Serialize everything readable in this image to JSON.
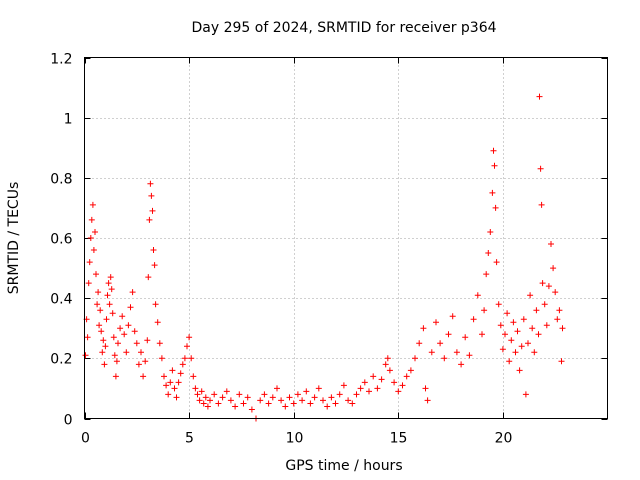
{
  "chart_data": {
    "type": "scatter",
    "title": "Day 295 of 2024, SRMTID for receiver p364",
    "xlabel": "GPS time / hours",
    "ylabel": "SRMTID / TECUs",
    "xlim": [
      0,
      25
    ],
    "ylim": [
      0,
      1.2
    ],
    "x_ticks": [
      0,
      5,
      10,
      15,
      20
    ],
    "x_tick_labels": [
      "0",
      "5",
      "10",
      "15",
      "20"
    ],
    "y_ticks": [
      0,
      0.2,
      0.4,
      0.6,
      0.8,
      1.0,
      1.2
    ],
    "y_tick_labels": [
      "0",
      "0.2",
      "0.4",
      "0.6",
      "0.8",
      "1",
      "1.2"
    ],
    "grid": true,
    "marker": "plus",
    "color": "#ff0000",
    "series": [
      {
        "name": "SRMTID",
        "points": [
          [
            0.05,
            0.21
          ],
          [
            0.1,
            0.33
          ],
          [
            0.15,
            0.27
          ],
          [
            0.2,
            0.45
          ],
          [
            0.25,
            0.52
          ],
          [
            0.3,
            0.6
          ],
          [
            0.35,
            0.66
          ],
          [
            0.4,
            0.71
          ],
          [
            0.45,
            0.56
          ],
          [
            0.5,
            0.62
          ],
          [
            0.55,
            0.48
          ],
          [
            0.6,
            0.38
          ],
          [
            0.65,
            0.42
          ],
          [
            0.7,
            0.31
          ],
          [
            0.75,
            0.36
          ],
          [
            0.8,
            0.29
          ],
          [
            0.85,
            0.22
          ],
          [
            0.9,
            0.26
          ],
          [
            0.95,
            0.18
          ],
          [
            1.0,
            0.24
          ],
          [
            1.05,
            0.33
          ],
          [
            1.1,
            0.41
          ],
          [
            1.15,
            0.45
          ],
          [
            1.2,
            0.38
          ],
          [
            1.25,
            0.47
          ],
          [
            1.3,
            0.43
          ],
          [
            1.35,
            0.35
          ],
          [
            1.4,
            0.27
          ],
          [
            1.45,
            0.21
          ],
          [
            1.5,
            0.14
          ],
          [
            1.55,
            0.19
          ],
          [
            1.6,
            0.25
          ],
          [
            1.7,
            0.3
          ],
          [
            1.8,
            0.34
          ],
          [
            1.9,
            0.28
          ],
          [
            2.0,
            0.22
          ],
          [
            2.1,
            0.31
          ],
          [
            2.2,
            0.37
          ],
          [
            2.3,
            0.42
          ],
          [
            2.4,
            0.29
          ],
          [
            2.5,
            0.25
          ],
          [
            2.6,
            0.18
          ],
          [
            2.7,
            0.22
          ],
          [
            2.8,
            0.14
          ],
          [
            2.9,
            0.19
          ],
          [
            3.0,
            0.26
          ],
          [
            3.05,
            0.47
          ],
          [
            3.1,
            0.66
          ],
          [
            3.15,
            0.78
          ],
          [
            3.2,
            0.74
          ],
          [
            3.25,
            0.69
          ],
          [
            3.3,
            0.56
          ],
          [
            3.35,
            0.51
          ],
          [
            3.4,
            0.38
          ],
          [
            3.5,
            0.32
          ],
          [
            3.6,
            0.25
          ],
          [
            3.7,
            0.2
          ],
          [
            3.8,
            0.14
          ],
          [
            3.9,
            0.11
          ],
          [
            4.0,
            0.08
          ],
          [
            4.1,
            0.12
          ],
          [
            4.2,
            0.16
          ],
          [
            4.3,
            0.1
          ],
          [
            4.4,
            0.07
          ],
          [
            4.5,
            0.12
          ],
          [
            4.6,
            0.15
          ],
          [
            4.7,
            0.18
          ],
          [
            4.8,
            0.2
          ],
          [
            4.9,
            0.24
          ],
          [
            5.0,
            0.27
          ],
          [
            5.1,
            0.2
          ],
          [
            5.2,
            0.14
          ],
          [
            5.3,
            0.1
          ],
          [
            5.4,
            0.08
          ],
          [
            5.5,
            0.06
          ],
          [
            5.6,
            0.09
          ],
          [
            5.7,
            0.05
          ],
          [
            5.8,
            0.07
          ],
          [
            5.9,
            0.04
          ],
          [
            6.0,
            0.06
          ],
          [
            6.2,
            0.08
          ],
          [
            6.4,
            0.05
          ],
          [
            6.6,
            0.07
          ],
          [
            6.8,
            0.09
          ],
          [
            7.0,
            0.06
          ],
          [
            7.2,
            0.04
          ],
          [
            7.4,
            0.08
          ],
          [
            7.6,
            0.05
          ],
          [
            7.8,
            0.07
          ],
          [
            8.0,
            0.03
          ],
          [
            8.2,
            0.0
          ],
          [
            8.4,
            0.06
          ],
          [
            8.6,
            0.08
          ],
          [
            8.8,
            0.05
          ],
          [
            9.0,
            0.07
          ],
          [
            9.2,
            0.1
          ],
          [
            9.4,
            0.06
          ],
          [
            9.6,
            0.04
          ],
          [
            9.8,
            0.07
          ],
          [
            10.0,
            0.05
          ],
          [
            10.2,
            0.08
          ],
          [
            10.4,
            0.06
          ],
          [
            10.6,
            0.09
          ],
          [
            10.8,
            0.05
          ],
          [
            11.0,
            0.07
          ],
          [
            11.2,
            0.1
          ],
          [
            11.4,
            0.06
          ],
          [
            11.6,
            0.04
          ],
          [
            11.8,
            0.07
          ],
          [
            12.0,
            0.05
          ],
          [
            12.2,
            0.08
          ],
          [
            12.4,
            0.11
          ],
          [
            12.6,
            0.06
          ],
          [
            12.8,
            0.05
          ],
          [
            13.0,
            0.08
          ],
          [
            13.2,
            0.1
          ],
          [
            13.4,
            0.12
          ],
          [
            13.6,
            0.09
          ],
          [
            13.8,
            0.14
          ],
          [
            14.0,
            0.1
          ],
          [
            14.2,
            0.13
          ],
          [
            14.4,
            0.18
          ],
          [
            14.5,
            0.2
          ],
          [
            14.6,
            0.16
          ],
          [
            14.8,
            0.12
          ],
          [
            15.0,
            0.09
          ],
          [
            15.2,
            0.11
          ],
          [
            15.4,
            0.14
          ],
          [
            15.6,
            0.16
          ],
          [
            15.8,
            0.2
          ],
          [
            16.0,
            0.25
          ],
          [
            16.2,
            0.3
          ],
          [
            16.3,
            0.1
          ],
          [
            16.4,
            0.06
          ],
          [
            16.6,
            0.22
          ],
          [
            16.8,
            0.32
          ],
          [
            17.0,
            0.25
          ],
          [
            17.2,
            0.2
          ],
          [
            17.4,
            0.28
          ],
          [
            17.6,
            0.34
          ],
          [
            17.8,
            0.22
          ],
          [
            18.0,
            0.18
          ],
          [
            18.2,
            0.27
          ],
          [
            18.4,
            0.21
          ],
          [
            18.6,
            0.33
          ],
          [
            18.8,
            0.41
          ],
          [
            19.0,
            0.28
          ],
          [
            19.1,
            0.36
          ],
          [
            19.2,
            0.48
          ],
          [
            19.3,
            0.55
          ],
          [
            19.4,
            0.62
          ],
          [
            19.5,
            0.75
          ],
          [
            19.55,
            0.89
          ],
          [
            19.6,
            0.84
          ],
          [
            19.65,
            0.7
          ],
          [
            19.7,
            0.52
          ],
          [
            19.8,
            0.38
          ],
          [
            19.9,
            0.31
          ],
          [
            20.0,
            0.23
          ],
          [
            20.1,
            0.28
          ],
          [
            20.2,
            0.35
          ],
          [
            20.3,
            0.19
          ],
          [
            20.4,
            0.26
          ],
          [
            20.5,
            0.32
          ],
          [
            20.6,
            0.22
          ],
          [
            20.7,
            0.29
          ],
          [
            20.8,
            0.16
          ],
          [
            20.9,
            0.24
          ],
          [
            21.0,
            0.33
          ],
          [
            21.1,
            0.08
          ],
          [
            21.2,
            0.25
          ],
          [
            21.3,
            0.41
          ],
          [
            21.4,
            0.3
          ],
          [
            21.5,
            0.22
          ],
          [
            21.6,
            0.36
          ],
          [
            21.7,
            0.28
          ],
          [
            21.75,
            1.07
          ],
          [
            21.8,
            0.83
          ],
          [
            21.85,
            0.71
          ],
          [
            21.9,
            0.45
          ],
          [
            22.0,
            0.38
          ],
          [
            22.1,
            0.31
          ],
          [
            22.2,
            0.44
          ],
          [
            22.3,
            0.58
          ],
          [
            22.4,
            0.5
          ],
          [
            22.5,
            0.42
          ],
          [
            22.6,
            0.33
          ],
          [
            22.7,
            0.36
          ],
          [
            22.8,
            0.19
          ],
          [
            22.85,
            0.3
          ]
        ]
      }
    ]
  }
}
